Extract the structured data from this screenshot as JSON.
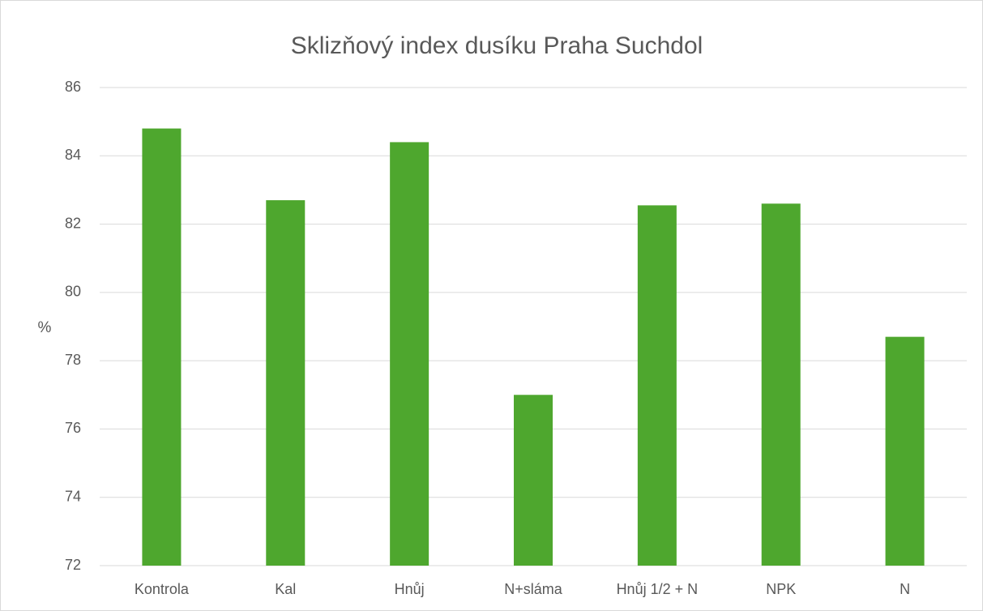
{
  "chart_data": {
    "type": "bar",
    "title": "Sklizňový index dusíku Praha Suchdol",
    "y_label": "%",
    "categories": [
      "Kontrola",
      "Kal",
      "Hnůj",
      "N+sláma",
      "Hnůj 1/2 + N",
      "NPK",
      "N"
    ],
    "values": [
      84.8,
      82.7,
      84.4,
      77.0,
      82.55,
      82.6,
      78.7
    ],
    "color": "#4ea72e",
    "ylim": [
      72,
      86
    ],
    "yticks": [
      72,
      74,
      76,
      78,
      80,
      82,
      84,
      86
    ],
    "grid": true
  }
}
